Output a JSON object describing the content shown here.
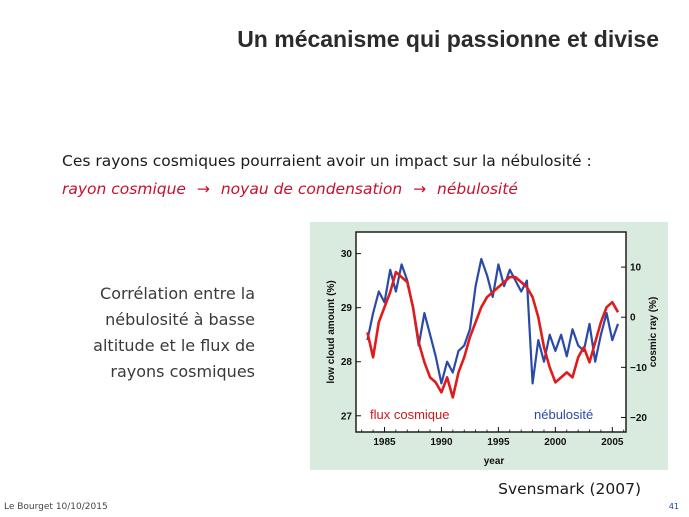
{
  "slide": {
    "title": "Un mécanisme qui passionne et divise",
    "intro": "Ces rayons cosmiques pourraient avoir un impact sur la nébulosité :",
    "chain": {
      "a": "rayon cosmique",
      "arrow": "→",
      "b": "noyau de condensation",
      "c": "nébulosité"
    },
    "side_lines": [
      "Corrélation entre la",
      "nébulosité à basse",
      "altitude et le flux de",
      "rayons cosmiques"
    ],
    "credit": "Svensmark (2007)",
    "footer_left": "Le Bourget 10/10/2015",
    "page_number": "41"
  },
  "chart_data": {
    "type": "line",
    "xlabel": "year",
    "ylabel_left": "low cloud amount (%)",
    "ylabel_right": "cosmic ray (%)",
    "xlim": [
      1982.5,
      2006.2
    ],
    "ylim_left": [
      26.7,
      30.4
    ],
    "ylim_right": [
      -22.9,
      17
    ],
    "x_ticks": [
      1985,
      1990,
      1995,
      2000,
      2005
    ],
    "y_ticks_left": [
      27,
      28,
      29,
      30
    ],
    "y_ticks_right": [
      -20,
      -10,
      0,
      10
    ],
    "series": [
      {
        "name": "flux cosmique",
        "color": "#e01b1b",
        "axis": "right",
        "x": [
          1983.5,
          1984,
          1984.5,
          1985,
          1985.5,
          1986,
          1986.5,
          1987,
          1987.5,
          1988,
          1988.5,
          1989,
          1989.5,
          1990,
          1990.5,
          1991,
          1991.5,
          1992,
          1992.5,
          1993,
          1993.5,
          1994,
          1994.5,
          1995,
          1995.5,
          1996,
          1996.5,
          1997,
          1997.5,
          1998,
          1998.5,
          1999,
          1999.5,
          2000,
          2000.5,
          2001,
          2001.5,
          2002,
          2002.5,
          2003,
          2003.5,
          2004,
          2004.5,
          2005,
          2005.5
        ],
        "y": [
          -3,
          -8,
          -1,
          2,
          5,
          9,
          8,
          7,
          2,
          -5,
          -9,
          -12,
          -13,
          -15,
          -12,
          -16,
          -11,
          -8,
          -4,
          -1,
          2,
          4,
          5,
          6,
          7,
          8,
          8,
          7,
          6,
          4,
          0,
          -6,
          -10,
          -13,
          -12,
          -11,
          -12,
          -8,
          -6,
          -9,
          -5,
          -1,
          2,
          3,
          1
        ]
      },
      {
        "name": "nébulosité",
        "color": "#2b4aa8",
        "axis": "left",
        "x": [
          1983.5,
          1984,
          1984.5,
          1985,
          1985.5,
          1986,
          1986.5,
          1987,
          1987.5,
          1988,
          1988.5,
          1989,
          1989.5,
          1990,
          1990.5,
          1991,
          1991.5,
          1992,
          1992.5,
          1993,
          1993.5,
          1994,
          1994.5,
          1995,
          1995.5,
          1996,
          1996.5,
          1997,
          1997.5,
          1998,
          1998.5,
          1999,
          1999.5,
          2000,
          2000.5,
          2001,
          2001.5,
          2002,
          2002.5,
          2003,
          2003.5,
          2004,
          2004.5,
          2005,
          2005.5
        ],
        "y": [
          28.4,
          28.9,
          29.3,
          29.1,
          29.7,
          29.3,
          29.8,
          29.5,
          29.0,
          28.3,
          28.9,
          28.5,
          28.1,
          27.6,
          28.0,
          27.8,
          28.2,
          28.3,
          28.6,
          29.4,
          29.9,
          29.6,
          29.2,
          29.8,
          29.4,
          29.7,
          29.5,
          29.3,
          29.5,
          27.6,
          28.4,
          28.0,
          28.5,
          28.2,
          28.5,
          28.1,
          28.6,
          28.3,
          28.2,
          28.7,
          28.0,
          28.5,
          28.9,
          28.4,
          28.7
        ]
      }
    ],
    "annotations": [
      {
        "text": "flux cosmique",
        "color": "#d01818"
      },
      {
        "text": "nébulosité",
        "color": "#2a48a8"
      }
    ]
  }
}
